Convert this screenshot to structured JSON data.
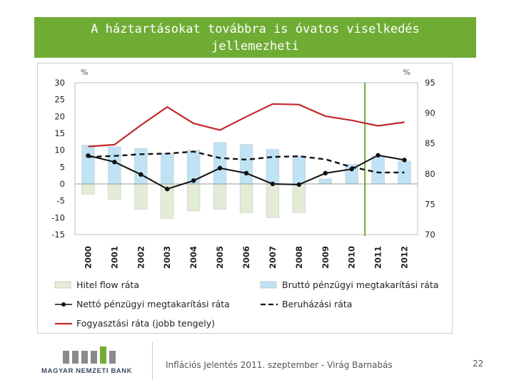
{
  "slide": {
    "title_line1": "A háztartásokat továbbra is óvatos viselkedés",
    "title_line2": "jellemezheti",
    "footer": "Inflációs Jelentés 2011. szeptember - Virág Barnabás",
    "page_number": "22",
    "logo_text": "MAGYAR NEMZETI BANK",
    "accent_color": "#6fac34"
  },
  "chart_data": {
    "type": "bar",
    "categories": [
      "2000",
      "2001",
      "2002",
      "2003",
      "2004",
      "2005",
      "2006",
      "2007",
      "2008",
      "2009",
      "2010",
      "2011",
      "2012"
    ],
    "left_axis": {
      "unit": "%",
      "ylim": [
        -15,
        30
      ],
      "ticks": [
        30,
        25,
        20,
        15,
        10,
        5,
        0,
        -5,
        -10,
        -15
      ]
    },
    "right_axis": {
      "unit": "%",
      "ylim": [
        70,
        95
      ],
      "ticks": [
        95,
        90,
        85,
        80,
        75,
        70
      ]
    },
    "forecast_divider_after": "2010",
    "series": [
      {
        "name": "Hitel flow ráta",
        "kind": "bar",
        "axis": "left",
        "color": "#e3ecd6",
        "values": [
          -3,
          -4.5,
          -7.5,
          -10.2,
          -8,
          -7.5,
          -8.5,
          -10,
          -8.5,
          0,
          0.5,
          1.5,
          1.5
        ]
      },
      {
        "name": "Bruttó pénzügyi megtakarítási ráta",
        "kind": "bar",
        "axis": "left",
        "color": "#bfe3f5",
        "values": [
          11.5,
          11,
          10.5,
          9,
          10,
          12.3,
          11.7,
          10.2,
          8.3,
          1.5,
          5.8,
          8.3,
          6.8
        ]
      },
      {
        "name": "Nettó pénzügyi megtakarítási ráta",
        "kind": "line-marker",
        "axis": "left",
        "color": "#111111",
        "values": [
          8.4,
          6.5,
          2.8,
          -1.5,
          1,
          4.7,
          3.2,
          0,
          -0.2,
          3.2,
          4.4,
          8.5,
          7.1
        ]
      },
      {
        "name": "Beruházási ráta",
        "kind": "line-dashed",
        "axis": "left",
        "color": "#111111",
        "values": [
          8,
          8.3,
          8.8,
          9,
          9.6,
          7.7,
          7.2,
          8,
          8.2,
          7.3,
          5,
          3.4,
          3.4
        ]
      },
      {
        "name": "Fogyasztási ráta (jobb tengely)",
        "kind": "line",
        "axis": "right",
        "color": "#c0282d",
        "values": [
          84.5,
          84.8,
          88,
          91,
          88.3,
          87.2,
          89.4,
          91.5,
          91.4,
          89.5,
          88.8,
          87.9,
          88.5
        ]
      }
    ],
    "legend": {
      "position": "bottom",
      "items": [
        "Hitel flow ráta",
        "Bruttó pénzügyi megtakarítási ráta",
        "Nettó pénzügyi megtakarítási ráta",
        "Beruházási ráta",
        "Fogyasztási ráta (jobb tengely)"
      ]
    }
  }
}
